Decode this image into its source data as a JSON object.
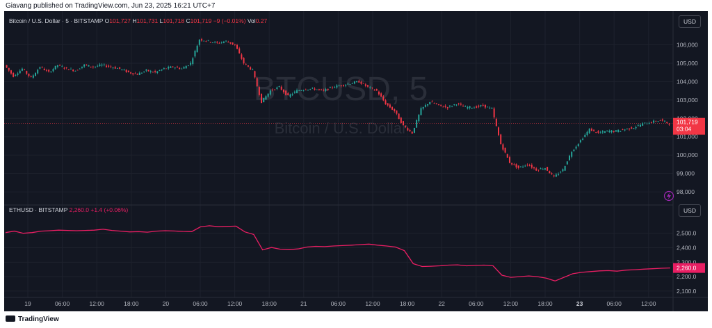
{
  "header": {
    "published": "Giavang published on TradingView.com, Jun 23, 2025 16:21 UTC+7"
  },
  "footer": {
    "brand": "TradingView"
  },
  "colors": {
    "bg": "#131722",
    "up": "#26a69a",
    "down": "#f23645",
    "eth": "#e91e63",
    "grid": "#1e222d",
    "text": "#b2b5be"
  },
  "icons": {
    "replay": "lightning-icon"
  },
  "chart_data": [
    {
      "type": "candlestick",
      "title": "Bitcoin / U.S. Dollar · 5 · BITSTAMP",
      "watermark": {
        "symbol": "BTCUSD, 5",
        "name": "Bitcoin / U.S. Dollar"
      },
      "ohlc": {
        "o_label": "O",
        "o": "101,727",
        "h_label": "H",
        "h": "101,731",
        "l_label": "L",
        "l": "101,718",
        "c_label": "C",
        "c": "101,719",
        "change": "−9 (−0.01%)",
        "vol_label": "Vol",
        "vol": "0.27"
      },
      "currency_button": "USD",
      "last_price": {
        "label": "101,719",
        "countdown": "03:04",
        "value": 101719
      },
      "yaxis_ticks": [
        "106,000",
        "105,000",
        "104,000",
        "103,000",
        "102,000",
        "101,000",
        "100,000",
        "99,000",
        "98,000"
      ],
      "ylim": [
        97700,
        106700
      ],
      "x": [
        0,
        3,
        6,
        9,
        12,
        15,
        18,
        21,
        24,
        27,
        30,
        33,
        36,
        39,
        42,
        45,
        48,
        51,
        54,
        57,
        60,
        63,
        66,
        69,
        72,
        75,
        78,
        81,
        84,
        87,
        90,
        93,
        96,
        99,
        102,
        105,
        108,
        111,
        114,
        117,
        120,
        123,
        126,
        129,
        132,
        135,
        138,
        141,
        144,
        147,
        150,
        153,
        156,
        159,
        162,
        165,
        168,
        171,
        174,
        177,
        180,
        183,
        186,
        189,
        192,
        195,
        198,
        201,
        204,
        207,
        210,
        213,
        216,
        219,
        222,
        225
      ],
      "values": [
        104900,
        104300,
        104700,
        104200,
        104800,
        104500,
        104900,
        104700,
        104600,
        104900,
        104800,
        104900,
        104800,
        104700,
        104500,
        104400,
        104600,
        104500,
        104700,
        104800,
        104700,
        105000,
        106300,
        106200,
        106100,
        106200,
        106000,
        105000,
        104600,
        102900,
        103500,
        103700,
        103200,
        103500,
        103600,
        103600,
        103500,
        103700,
        103800,
        103900,
        104000,
        103700,
        103500,
        102800,
        102400,
        101600,
        101200,
        102500,
        102900,
        102700,
        102600,
        102800,
        102600,
        102600,
        102700,
        102500,
        100600,
        99600,
        99300,
        99500,
        99200,
        99300,
        98800,
        99200,
        100200,
        100800,
        101400,
        101200,
        101300,
        101300,
        101400,
        101500,
        101700,
        101800,
        101900,
        101719
      ]
    },
    {
      "type": "line",
      "title": "ETHUSD · BITSTAMP",
      "series_values": {
        "last": "2,260.0",
        "change": "+1.4 (+0.06%)"
      },
      "currency_button": "USD",
      "last_price": {
        "label": "2,260.0",
        "value": 2260
      },
      "yaxis_ticks": [
        "2,500.0",
        "2,400.0",
        "2,300.0",
        "2,200.0",
        "2,100.0"
      ],
      "ylim": [
        2085,
        2595
      ],
      "x": [
        0,
        3,
        6,
        9,
        12,
        15,
        18,
        21,
        24,
        27,
        30,
        33,
        36,
        39,
        42,
        45,
        48,
        51,
        54,
        57,
        60,
        63,
        66,
        69,
        72,
        75,
        78,
        81,
        84,
        87,
        90,
        93,
        96,
        99,
        102,
        105,
        108,
        111,
        114,
        117,
        120,
        123,
        126,
        129,
        132,
        135,
        138,
        141,
        144,
        147,
        150,
        153,
        156,
        159,
        162,
        165,
        168,
        171,
        174,
        177,
        180,
        183,
        186,
        189,
        192,
        195,
        198,
        201,
        204,
        207,
        210,
        213,
        216,
        219,
        222,
        225
      ],
      "values": [
        2505,
        2515,
        2500,
        2505,
        2515,
        2518,
        2522,
        2520,
        2518,
        2520,
        2522,
        2528,
        2520,
        2515,
        2510,
        2512,
        2508,
        2515,
        2518,
        2516,
        2513,
        2512,
        2545,
        2552,
        2546,
        2548,
        2550,
        2510,
        2492,
        2385,
        2402,
        2390,
        2387,
        2392,
        2405,
        2410,
        2408,
        2412,
        2415,
        2418,
        2422,
        2425,
        2418,
        2412,
        2405,
        2380,
        2290,
        2270,
        2272,
        2275,
        2280,
        2282,
        2275,
        2278,
        2280,
        2275,
        2210,
        2195,
        2200,
        2205,
        2200,
        2190,
        2170,
        2195,
        2220,
        2230,
        2235,
        2240,
        2242,
        2238,
        2245,
        2248,
        2252,
        2255,
        2258,
        2260
      ]
    }
  ],
  "time_axis": {
    "labels": [
      "19",
      "06:00",
      "12:00",
      "18:00",
      "20",
      "06:00",
      "12:00",
      "18:00",
      "21",
      "06:00",
      "12:00",
      "18:00",
      "22",
      "06:00",
      "12:00",
      "18:00",
      "23",
      "06:00",
      "12:00"
    ],
    "bold": [
      false,
      false,
      false,
      false,
      false,
      false,
      false,
      false,
      false,
      false,
      false,
      false,
      false,
      false,
      false,
      false,
      true,
      false,
      false
    ]
  }
}
